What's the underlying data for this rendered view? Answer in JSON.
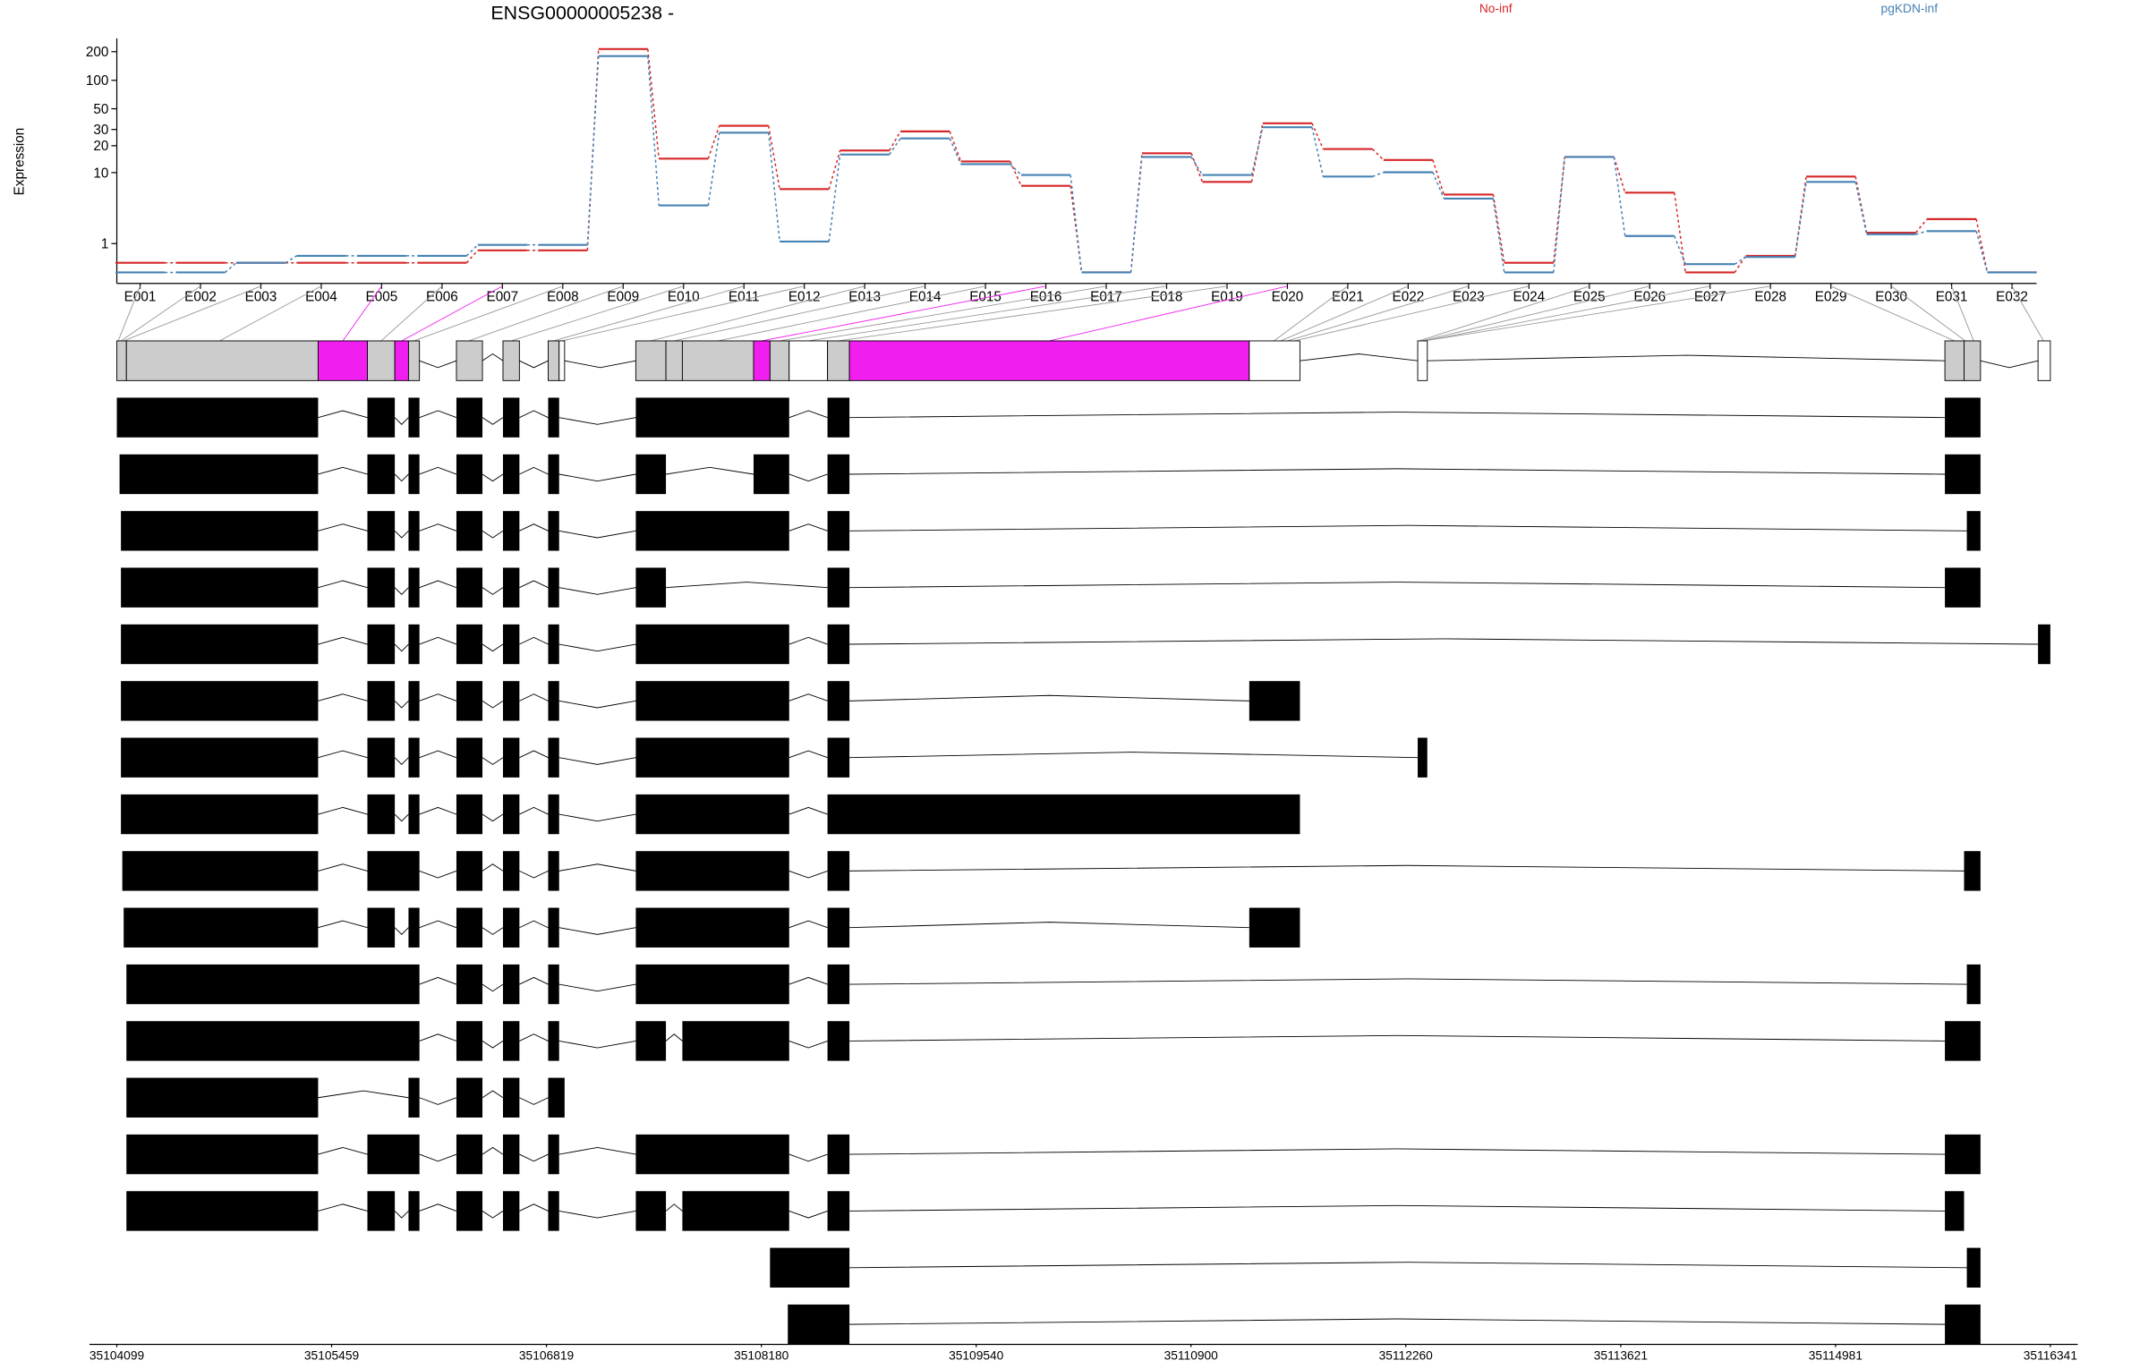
{
  "chart_data": [
    {
      "type": "line",
      "title": "ENSG00000005238 -",
      "y_label": "Expression",
      "yscale": "log1p",
      "categories": [
        "E001",
        "E002",
        "E003",
        "E004",
        "E005",
        "E006",
        "E007",
        "E008",
        "E009",
        "E010",
        "E011",
        "E012",
        "E013",
        "E014",
        "E015",
        "E016",
        "E017",
        "E018",
        "E019",
        "E020",
        "E021",
        "E022",
        "E023",
        "E024",
        "E025",
        "E026",
        "E027",
        "E028",
        "E029",
        "E030",
        "E031",
        "E032"
      ],
      "series": [
        {
          "name": "No-inf",
          "color": "#d62728",
          "values": [
            0.26,
            0.26,
            0.26,
            0.26,
            0.26,
            0.26,
            0.7,
            0.7,
            213,
            14.4,
            32.9,
            6.4,
            17.7,
            28.6,
            13.4,
            7,
            0,
            16.5,
            7.8,
            35,
            18.4,
            13.9,
            5.5,
            0.26,
            15,
            5.8,
            0,
            0.49,
            9,
            1.6,
            2.6,
            0
          ]
        },
        {
          "name": "pgKDN-inf",
          "color": "#4682b4",
          "values": [
            0,
            0,
            0.26,
            0.49,
            0.49,
            0.49,
            0.94,
            0.94,
            180,
            4,
            27.7,
            1.1,
            16,
            24,
            12.5,
            9.4,
            0,
            15,
            9.4,
            31.7,
            9,
            10.1,
            4.9,
            0,
            15,
            1.4,
            0.22,
            0.45,
            7.8,
            1.5,
            1.7,
            0
          ]
        }
      ],
      "ylim": [
        0,
        250
      ],
      "yticks": [
        1,
        10,
        20,
        30,
        50,
        100,
        200
      ]
    },
    {
      "type": "gene-model",
      "xlim": [
        35104099,
        35116341
      ],
      "xticks": [
        35104099,
        35105459,
        35106819,
        35108180,
        35109540,
        35110900,
        35112260,
        35113621,
        35114981,
        35116341
      ]
    }
  ]
}
